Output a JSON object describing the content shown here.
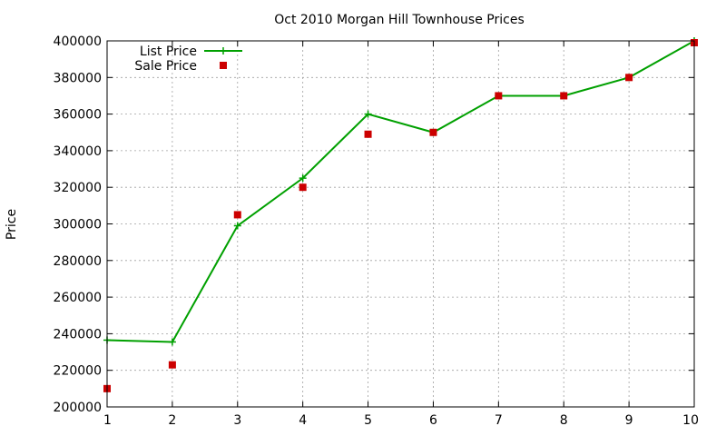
{
  "chart_data": {
    "type": "line",
    "title": "Oct 2010 Morgan Hill Townhouse Prices",
    "xlabel": "",
    "ylabel": "Price",
    "x": [
      1,
      2,
      3,
      4,
      5,
      6,
      7,
      8,
      9,
      10
    ],
    "xlim": [
      1,
      10
    ],
    "ylim": [
      200000,
      400000
    ],
    "x_ticks": [
      "1",
      "2",
      "3",
      "4",
      "5",
      "6",
      "7",
      "8",
      "9",
      "10"
    ],
    "y_ticks": [
      "200000",
      "220000",
      "240000",
      "260000",
      "280000",
      "300000",
      "320000",
      "340000",
      "360000",
      "380000",
      "400000"
    ],
    "grid": true,
    "legend_position": "top-left",
    "series": [
      {
        "name": "List Price",
        "style": "line with plus markers",
        "color": "#00a000",
        "values": [
          236500,
          235500,
          299000,
          325000,
          360000,
          350000,
          370000,
          370000,
          380000,
          400000
        ]
      },
      {
        "name": "Sale Price",
        "style": "square markers",
        "color": "#cc0000",
        "values": [
          210000,
          223000,
          305000,
          320000,
          349000,
          350000,
          370000,
          370000,
          380000,
          399000
        ]
      }
    ]
  }
}
